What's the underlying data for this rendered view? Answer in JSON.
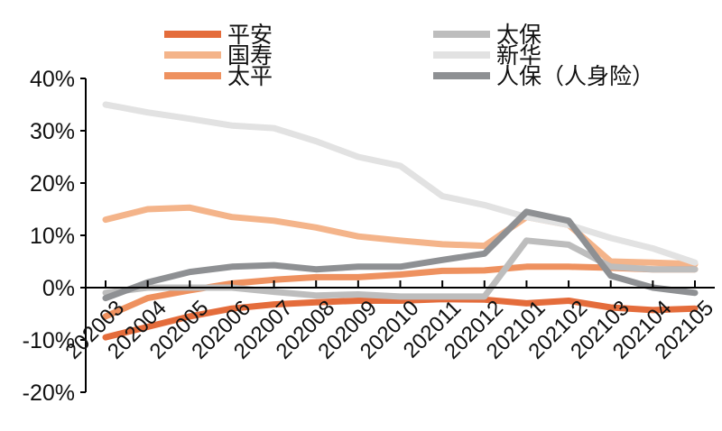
{
  "chart_data": {
    "type": "line",
    "title": "",
    "xlabel": "",
    "ylabel": "",
    "ylim": [
      -20,
      40
    ],
    "yticks": [
      "-20%",
      "-10%",
      "0%",
      "10%",
      "20%",
      "30%",
      "40%"
    ],
    "ytick_values": [
      -20,
      -10,
      0,
      10,
      20,
      30,
      40
    ],
    "categories": [
      "202003",
      "202004",
      "202005",
      "202006",
      "202007",
      "202008",
      "202009",
      "202010",
      "202011",
      "202012",
      "202101",
      "202102",
      "202103",
      "202104",
      "202105"
    ],
    "legend_position": "top",
    "series": [
      {
        "name": "平安",
        "color": "#E46C3B",
        "values": [
          -9.5,
          -7.5,
          -5.5,
          -4,
          -3.2,
          -2.8,
          -2.5,
          -2.5,
          -2.2,
          -2.3,
          -3,
          -2.5,
          -3.8,
          -4.3,
          -4
        ]
      },
      {
        "name": "国寿",
        "color": "#F4B48A",
        "values": [
          13,
          15,
          15.3,
          13.5,
          12.8,
          11.5,
          9.8,
          9,
          8.3,
          8,
          13.5,
          12,
          5,
          4.8,
          4.5
        ]
      },
      {
        "name": "太平",
        "color": "#EE915F",
        "values": [
          -5.5,
          -2,
          -0.5,
          0.8,
          1.5,
          2,
          2,
          2.5,
          3.2,
          3.3,
          4,
          4,
          3.8,
          3.5,
          3.5
        ]
      },
      {
        "name": "太保",
        "color": "#BDBDBD",
        "values": [
          -1,
          0,
          0,
          0,
          -0.8,
          -1.5,
          -1.3,
          -1.7,
          -1.7,
          -1.7,
          9,
          8.2,
          4,
          3.5,
          3.5
        ]
      },
      {
        "name": "新华",
        "color": "#E2E2E2",
        "values": [
          35,
          33.5,
          32.3,
          31,
          30.5,
          28,
          25,
          23.3,
          17.5,
          15.8,
          13.5,
          12,
          9.5,
          7.5,
          4.8
        ]
      },
      {
        "name": "人保（人身险）",
        "color": "#8E9093",
        "values": [
          -2,
          1,
          3,
          4,
          4.3,
          3.5,
          4,
          4,
          5.3,
          6.5,
          14.5,
          12.8,
          2.3,
          0,
          -1
        ]
      }
    ]
  }
}
